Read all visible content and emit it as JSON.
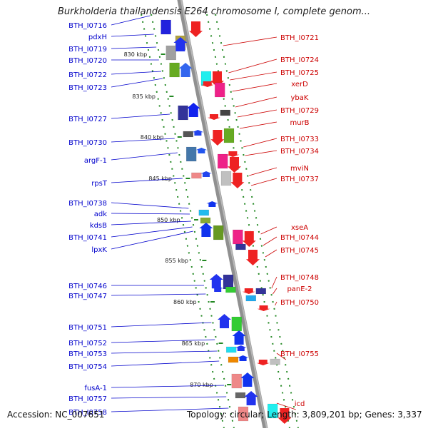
{
  "title": "Burkholderia thailandensis E264 chromosome I, complete genom...",
  "accession": "Accession: NC_007651",
  "topology": "Topology: circular; Length: 3,809,201 bp; Genes: 3,337",
  "colors": {
    "forward_labels": "#0000cc",
    "reverse_labels": "#cc0000",
    "backbone": "#909090",
    "dotted": "#228822"
  },
  "kbp_ticks": [
    "830 kbp",
    "835 kbp",
    "840 kbp",
    "845 kbp",
    "850 kbp",
    "855 kbp",
    "860 kbp",
    "865 kbp",
    "870 kbp"
  ],
  "left_genes": [
    "BTH_I0716",
    "pdxH",
    "BTH_I0719",
    "BTH_I0720",
    "BTH_I0722",
    "BTH_I0723",
    "BTH_I0727",
    "BTH_I0730",
    "argF-1",
    "rpsT",
    "BTH_I0738",
    "adk",
    "kdsB",
    "BTH_I0741",
    "lpxK",
    "BTH_I0746",
    "BTH_I0747",
    "BTH_I0751",
    "BTH_I0752",
    "BTH_I0753",
    "BTH_I0754",
    "fusA-1",
    "BTH_I0757",
    "BTH_I0758"
  ],
  "right_genes": [
    "BTH_I0721",
    "BTH_I0724",
    "BTH_I0725",
    "xerD",
    "ybaK",
    "BTH_I0729",
    "murB",
    "BTH_I0733",
    "BTH_I0734",
    "mviN",
    "BTH_I0737",
    "xseA",
    "BTH_I0744",
    "BTH_I0745",
    "BTH_I0748",
    "panE-2",
    "BTH_I0750",
    "BTH_I0755",
    "icd"
  ]
}
